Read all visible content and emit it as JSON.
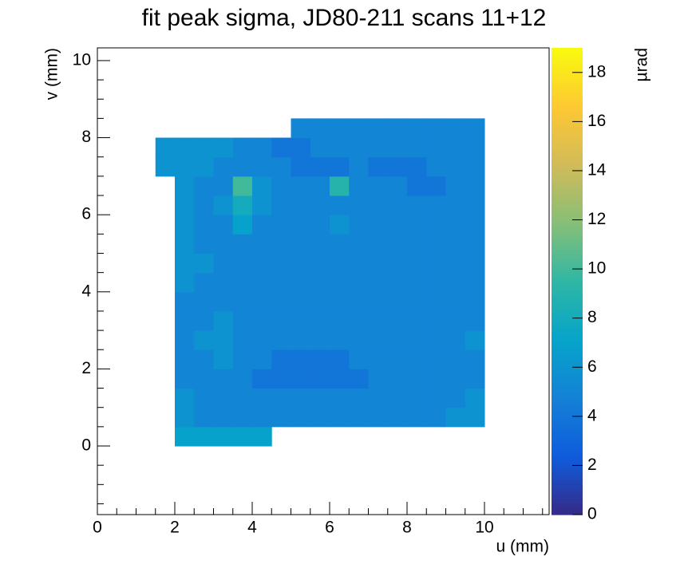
{
  "chart_data": {
    "type": "heatmap",
    "title": "fit peak sigma, JD80-211 scans 11+12",
    "x_label": "u (mm)",
    "y_label": "v (mm)",
    "colorbar_label": "µrad",
    "xlim": [
      0,
      11.67
    ],
    "ylim": [
      -1.78,
      10.33
    ],
    "zlim": [
      0,
      19
    ],
    "xticks": [
      0,
      2,
      4,
      6,
      8,
      10
    ],
    "yticks": [
      0,
      2,
      4,
      6,
      8,
      10
    ],
    "zticks": [
      0,
      2,
      4,
      6,
      8,
      10,
      12,
      14,
      16,
      18
    ],
    "colormap": [
      "#352a87",
      "#0f5cdd",
      "#1481d6",
      "#06a4ca",
      "#2eb7a4",
      "#87bf77",
      "#d1bb59",
      "#fec832",
      "#f9fb0e"
    ],
    "x_edges": [
      1.5,
      2,
      2.5,
      3,
      3.5,
      4,
      4.5,
      5,
      5.5,
      6,
      6.5,
      7,
      7.5,
      8,
      8.5,
      9,
      9.5,
      10,
      10.5
    ],
    "y_edges": [
      0,
      0.5,
      1,
      1.5,
      2,
      2.5,
      3,
      3.5,
      4,
      4.5,
      5,
      5.5,
      6,
      6.5,
      7,
      7.5,
      8,
      8.5
    ],
    "values": [
      [
        null,
        7,
        7,
        7,
        7,
        7,
        null,
        null,
        null,
        null,
        null,
        null,
        null,
        null,
        null,
        null,
        null,
        null
      ],
      [
        null,
        6,
        5,
        5,
        5,
        5,
        5,
        5,
        5,
        5,
        5,
        5,
        5,
        5,
        5,
        6,
        6,
        null
      ],
      [
        null,
        6,
        5,
        5,
        5,
        5,
        5,
        5,
        5,
        5,
        5,
        5,
        5,
        5,
        5,
        5,
        6,
        null
      ],
      [
        null,
        5,
        5,
        5,
        5,
        4,
        4,
        4,
        4,
        4,
        4,
        5,
        5,
        5,
        5,
        5,
        5,
        null
      ],
      [
        null,
        5,
        5,
        6,
        5,
        5,
        4,
        4,
        4,
        4,
        5,
        5,
        5,
        5,
        5,
        5,
        5,
        null
      ],
      [
        null,
        5,
        6,
        6,
        5,
        5,
        5,
        5,
        5,
        5,
        5,
        5,
        5,
        5,
        5,
        5,
        6,
        null
      ],
      [
        null,
        5,
        5,
        6,
        5,
        5,
        5,
        5,
        5,
        5,
        5,
        5,
        5,
        5,
        5,
        5,
        5,
        null
      ],
      [
        null,
        5,
        5,
        5,
        5,
        5,
        5,
        5,
        5,
        5,
        5,
        5,
        5,
        5,
        5,
        5,
        5,
        null
      ],
      [
        null,
        6,
        5,
        5,
        5,
        5,
        5,
        5,
        5,
        5,
        5,
        5,
        5,
        5,
        5,
        5,
        5,
        null
      ],
      [
        null,
        6,
        6,
        5,
        5,
        5,
        5,
        5,
        5,
        5,
        5,
        5,
        5,
        5,
        5,
        5,
        5,
        null
      ],
      [
        null,
        6,
        5,
        5,
        5,
        5,
        5,
        5,
        5,
        5,
        5,
        5,
        5,
        5,
        5,
        5,
        5,
        null
      ],
      [
        null,
        6,
        5,
        5,
        7,
        5,
        5,
        5,
        5,
        6,
        5,
        5,
        5,
        5,
        5,
        5,
        5,
        null
      ],
      [
        null,
        6,
        5,
        6,
        8,
        6,
        5,
        5,
        5,
        5,
        5,
        5,
        5,
        5,
        5,
        5,
        5,
        null
      ],
      [
        null,
        6,
        5,
        5,
        10,
        6,
        5,
        5,
        5,
        9,
        5,
        5,
        5,
        4,
        4,
        5,
        5,
        null
      ],
      [
        6,
        6,
        6,
        5,
        5,
        5,
        5,
        4,
        4,
        4,
        5,
        4,
        4,
        4,
        5,
        5,
        5,
        null
      ],
      [
        6,
        6,
        6,
        6,
        5,
        5,
        4,
        4,
        5,
        5,
        5,
        5,
        5,
        5,
        5,
        5,
        5,
        null
      ],
      [
        null,
        null,
        null,
        null,
        null,
        null,
        null,
        5,
        5,
        5,
        5,
        5,
        5,
        5,
        5,
        5,
        5,
        null
      ]
    ]
  }
}
